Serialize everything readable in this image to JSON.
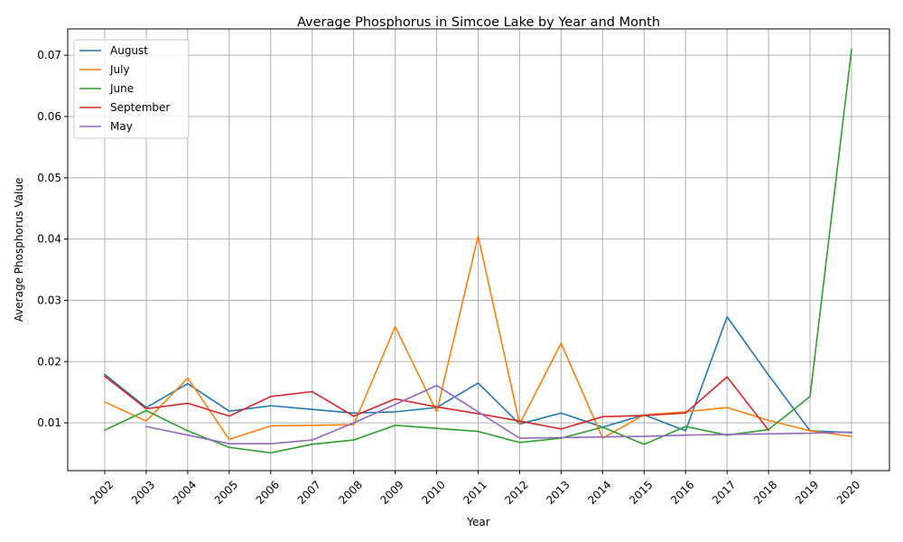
{
  "chart_data": {
    "type": "line",
    "title": "Average Phosphorus in Simcoe Lake by Year and Month",
    "xlabel": "Year",
    "ylabel": "Average Phosphorus Value",
    "categories": [
      "2002",
      "2003",
      "2004",
      "2005",
      "2006",
      "2007",
      "2008",
      "2009",
      "2010",
      "2011",
      "2012",
      "2013",
      "2014",
      "2015",
      "2016",
      "2017",
      "2018",
      "2019",
      "2020"
    ],
    "ylim": [
      0.0022,
      0.0743
    ],
    "yticks": [
      "0.01",
      "0.02",
      "0.03",
      "0.04",
      "0.05",
      "0.06",
      "0.07"
    ],
    "grid": true,
    "legend_position": "upper-left",
    "series": [
      {
        "name": "August",
        "color": "#1f77b4",
        "values": [
          0.0179,
          0.0125,
          0.0164,
          0.0119,
          0.0128,
          0.0122,
          0.0116,
          0.0118,
          0.0125,
          0.0165,
          0.0098,
          0.0116,
          0.0093,
          0.0113,
          0.0087,
          0.0273,
          0.0178,
          0.0087,
          0.0084
        ]
      },
      {
        "name": "July",
        "color": "#ff7f0e",
        "values": [
          0.0134,
          0.0103,
          0.0173,
          0.0073,
          0.0095,
          0.0096,
          0.0097,
          0.0257,
          0.0118,
          0.0405,
          0.0098,
          0.023,
          0.0075,
          0.0113,
          0.0118,
          0.0125,
          0.0104,
          0.0087,
          0.0078
        ]
      },
      {
        "name": "June",
        "color": "#2ca02c",
        "values": [
          0.0088,
          0.012,
          0.0087,
          0.006,
          0.0051,
          0.0065,
          0.0072,
          0.0096,
          0.0091,
          0.0086,
          0.0068,
          0.0075,
          0.0093,
          0.0065,
          0.0094,
          0.008,
          0.0089,
          0.0143,
          0.0709
        ]
      },
      {
        "name": "September",
        "color": "#d62728",
        "values": [
          0.0176,
          0.0123,
          0.0132,
          0.0111,
          0.0143,
          0.0151,
          0.0111,
          0.0139,
          0.0126,
          0.0115,
          0.0103,
          0.009,
          0.011,
          0.0112,
          0.0116,
          0.0175,
          0.0088,
          null,
          null
        ]
      },
      {
        "name": "May",
        "color": "#9467bd",
        "values": [
          null,
          0.0094,
          0.008,
          0.0066,
          0.0066,
          0.0072,
          0.01,
          0.013,
          0.0161,
          0.0118,
          0.0075,
          0.0076,
          0.0077,
          0.0078,
          0.008,
          0.0081,
          0.0082,
          0.0083,
          0.0085
        ]
      }
    ]
  }
}
